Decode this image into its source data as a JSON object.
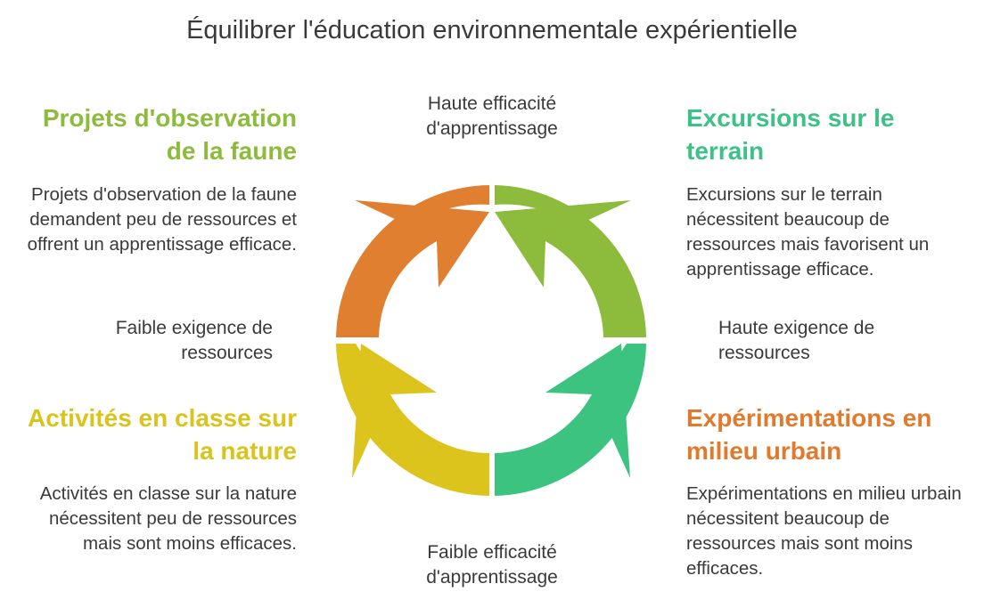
{
  "title": "Équilibrer l'éducation environnementale expérientielle",
  "axes": {
    "top": "Haute efficacité d'apprentissage",
    "bottom": "Faible efficacité d'apprentissage",
    "left": "Faible exigence de ressources",
    "right": "Haute exigence de ressources"
  },
  "quadrants": {
    "top_left": {
      "title": "Projets d'observation de la faune",
      "description": "Projets d'observation de la faune demandent peu de ressources et offrent un apprentissage efficace.",
      "color": "#8dbb3c"
    },
    "top_right": {
      "title": "Excursions sur le terrain",
      "description": "Excursions sur le terrain nécessitent beaucoup de ressources mais favorisent un apprentissage efficace.",
      "color": "#3cc186"
    },
    "bottom_left": {
      "title": "Activités en classe sur la nature",
      "description": "Activités en classe sur la nature nécessitent peu de ressources mais sont moins efficaces.",
      "color": "#d9c41b"
    },
    "bottom_right": {
      "title": "Expérimentations en milieu urbain",
      "description": "Expérimentations en milieu urbain nécessitent beaucoup de ressources mais sont moins efficaces.",
      "color": "#e07b2e"
    }
  },
  "cycle_colors": {
    "top_left": "#e07f30",
    "top_right": "#8dbb3c",
    "bottom_right": "#3cc37f",
    "bottom_left": "#ddc41c"
  }
}
